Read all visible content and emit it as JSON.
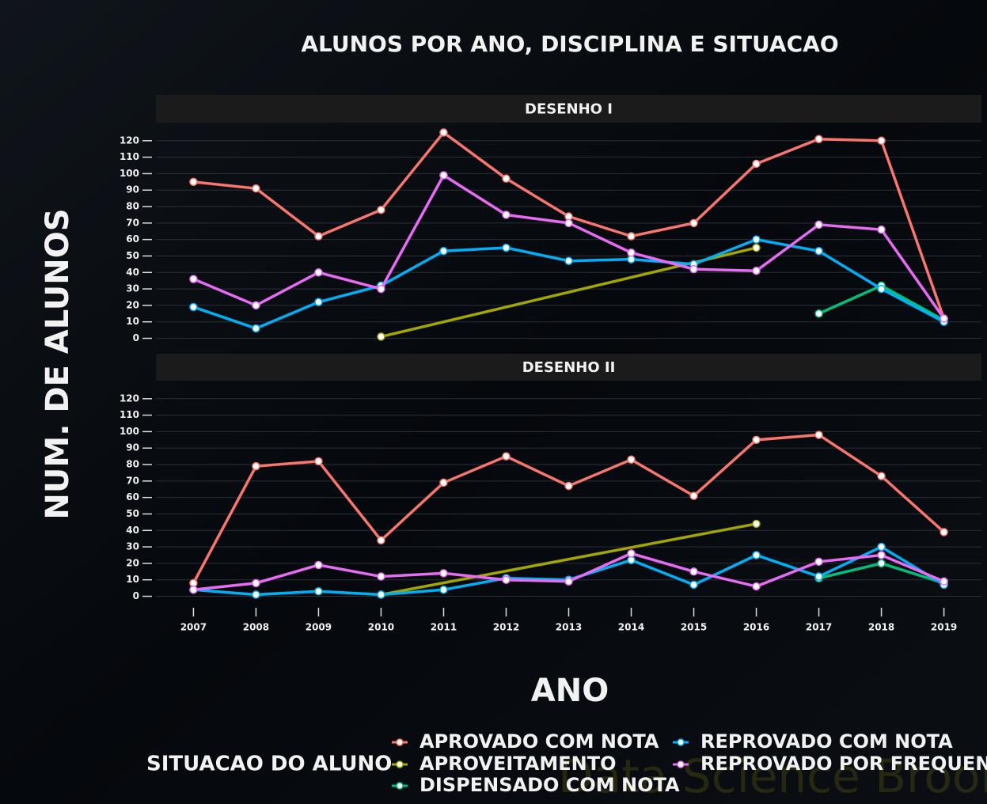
{
  "chart_data": {
    "type": "line",
    "title": "ALUNOS POR ANO, DISCIPLINA E SITUACAO",
    "xlabel": "ANO",
    "ylabel": "NUM. DE ALUNOS",
    "legend_title": "SITUACAO DO ALUNO",
    "watermark": "Data Science Broom",
    "grid": true,
    "x": [
      2007,
      2008,
      2009,
      2010,
      2011,
      2012,
      2013,
      2014,
      2015,
      2016,
      2017,
      2018,
      2019
    ],
    "xlim": [
      2006.4,
      2019.6
    ],
    "xticks": [
      2007,
      2008,
      2009,
      2010,
      2011,
      2012,
      2013,
      2014,
      2015,
      2016,
      2017,
      2018,
      2019
    ],
    "ylim": [
      -6,
      130
    ],
    "yticks": [
      0,
      10,
      20,
      30,
      40,
      50,
      60,
      70,
      80,
      90,
      100,
      110,
      120
    ],
    "legend_names": [
      "APROVADO COM NOTA",
      "APROVEITAMENTO",
      "DISPENSADO COM NOTA",
      "REPROVADO COM NOTA",
      "REPROVADO POR FREQUENCIA"
    ],
    "legend_colors": [
      "#f8766d",
      "#a3a500",
      "#00bf7d",
      "#00b0f6",
      "#e76bf3"
    ],
    "panels": [
      {
        "title": "DESENHO I",
        "series": [
          {
            "color": "#f8766d",
            "values": [
              95,
              91,
              62,
              78,
              125,
              97,
              74,
              62,
              70,
              106,
              121,
              120,
              12
            ]
          },
          {
            "color": "#a3a500",
            "x": [
              2010,
              2016
            ],
            "values": [
              1,
              55
            ]
          },
          {
            "color": "#00bf7d",
            "x": [
              2017,
              2018,
              2019
            ],
            "values": [
              15,
              32,
              11
            ]
          },
          {
            "color": "#00b0f6",
            "values": [
              19,
              6,
              22,
              32,
              53,
              55,
              47,
              48,
              45,
              60,
              53,
              30,
              10
            ]
          },
          {
            "color": "#e76bf3",
            "values": [
              36,
              20,
              40,
              30,
              99,
              75,
              70,
              52,
              42,
              41,
              69,
              66,
              12
            ]
          }
        ]
      },
      {
        "title": "DESENHO II",
        "series": [
          {
            "color": "#f8766d",
            "values": [
              8,
              79,
              82,
              34,
              69,
              85,
              67,
              83,
              61,
              95,
              98,
              73,
              39
            ]
          },
          {
            "color": "#a3a500",
            "x": [
              2010,
              2016
            ],
            "values": [
              1,
              44
            ]
          },
          {
            "color": "#00bf7d",
            "x": [
              2017,
              2018,
              2019
            ],
            "values": [
              11,
              20,
              8
            ]
          },
          {
            "color": "#00b0f6",
            "values": [
              4,
              1,
              3,
              1,
              4,
              11,
              10,
              22,
              7,
              25,
              12,
              30,
              7
            ]
          },
          {
            "color": "#e76bf3",
            "values": [
              4,
              8,
              19,
              12,
              14,
              10,
              9,
              26,
              15,
              6,
              21,
              25,
              9
            ]
          }
        ]
      }
    ]
  }
}
